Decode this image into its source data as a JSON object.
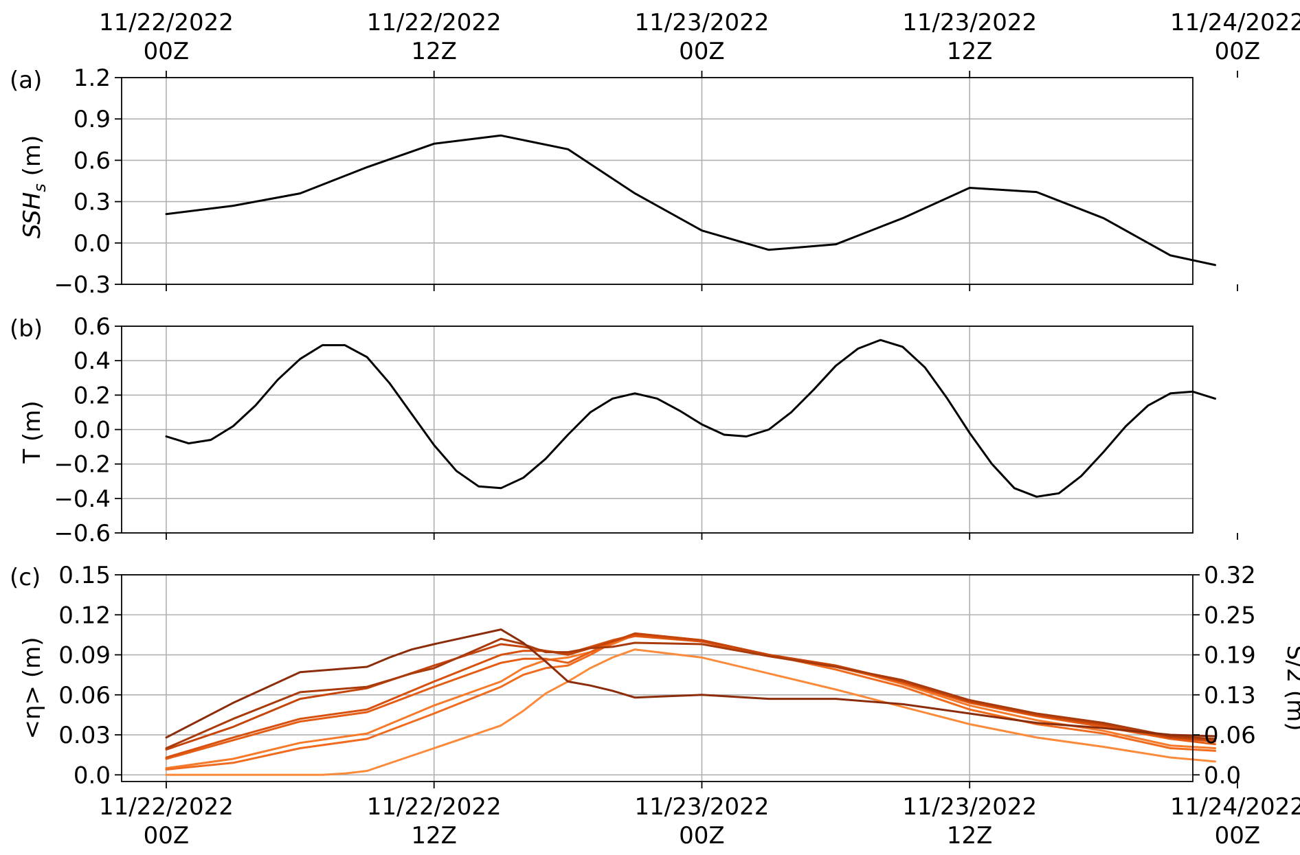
{
  "chart_data": [
    {
      "type": "line",
      "panel_label": "(a)",
      "ylabel": "SSH",
      "ylabel_subscript": "s",
      "ylabel_unit": "(m)",
      "ylim": [
        -0.3,
        1.2
      ],
      "yticks": [
        -0.3,
        0.0,
        0.3,
        0.6,
        0.9,
        1.2
      ],
      "ytick_labels": [
        "−0.3",
        "0.0",
        "0.3",
        "0.6",
        "0.9",
        "1.2"
      ],
      "xlim": [
        -2,
        46
      ],
      "xticks": [
        0,
        12,
        24,
        36,
        48
      ],
      "xtick_labels_top": [
        [
          "11/22/2022",
          "00Z"
        ],
        [
          "11/22/2022",
          "12Z"
        ],
        [
          "11/23/2022",
          "00Z"
        ],
        [
          "11/23/2022",
          "12Z"
        ],
        [
          "11/24/2022",
          "00Z"
        ]
      ],
      "grid": true,
      "series": [
        {
          "color": "#000000",
          "x": [
            0,
            3,
            6,
            9,
            12,
            15,
            18,
            21,
            24,
            27,
            30,
            33,
            36,
            39,
            42,
            45,
            47
          ],
          "y": [
            0.21,
            0.27,
            0.36,
            0.55,
            0.72,
            0.78,
            0.68,
            0.36,
            0.09,
            -0.05,
            -0.01,
            0.18,
            0.4,
            0.37,
            0.18,
            -0.09,
            -0.16
          ]
        }
      ]
    },
    {
      "type": "line",
      "panel_label": "(b)",
      "ylabel": "T (m)",
      "ylim": [
        -0.6,
        0.6
      ],
      "yticks": [
        -0.6,
        -0.4,
        -0.2,
        0.0,
        0.2,
        0.4,
        0.6
      ],
      "ytick_labels": [
        "−0.6",
        "−0.4",
        "−0.2",
        "0.0",
        "0.2",
        "0.4",
        "0.6"
      ],
      "xlim": [
        -2,
        46
      ],
      "xticks": [
        0,
        12,
        24,
        36,
        48
      ],
      "grid": true,
      "series": [
        {
          "color": "#000000",
          "x": [
            0,
            1,
            2,
            3,
            4,
            5,
            6,
            7,
            8,
            9,
            10,
            11,
            12,
            13,
            14,
            15,
            16,
            17,
            18,
            19,
            20,
            21,
            22,
            23,
            24,
            25,
            26,
            27,
            28,
            29,
            30,
            31,
            32,
            33,
            34,
            35,
            36,
            37,
            38,
            39,
            40,
            41,
            42,
            43,
            44,
            45,
            46,
            47
          ],
          "y": [
            -0.04,
            -0.08,
            -0.06,
            0.02,
            0.14,
            0.29,
            0.41,
            0.49,
            0.49,
            0.42,
            0.27,
            0.09,
            -0.09,
            -0.24,
            -0.33,
            -0.34,
            -0.28,
            -0.17,
            -0.03,
            0.1,
            0.18,
            0.21,
            0.18,
            0.11,
            0.03,
            -0.03,
            -0.04,
            0.0,
            0.1,
            0.23,
            0.37,
            0.47,
            0.52,
            0.48,
            0.36,
            0.18,
            -0.02,
            -0.2,
            -0.34,
            -0.39,
            -0.37,
            -0.27,
            -0.13,
            0.02,
            0.14,
            0.21,
            0.22,
            0.18
          ]
        }
      ]
    },
    {
      "type": "line",
      "panel_label": "(c)",
      "ylabel": "<η> (m)",
      "ylabel_right": "S/2 (m)",
      "ylim": [
        -0.005,
        0.15
      ],
      "yticks": [
        0.0,
        0.03,
        0.06,
        0.09,
        0.12,
        0.15
      ],
      "ytick_labels": [
        "0.0",
        "0.03",
        "0.06",
        "0.09",
        "0.12",
        "0.15"
      ],
      "yticks_right_at": [
        0.0,
        0.03,
        0.06,
        0.09,
        0.12,
        0.15
      ],
      "ytick_labels_right": [
        "0.0",
        "0.06",
        "0.13",
        "0.19",
        "0.25",
        "0.32"
      ],
      "xlim": [
        -2,
        46
      ],
      "xticks": [
        0,
        12,
        24,
        36,
        48
      ],
      "xtick_labels_bottom": [
        [
          "11/22/2022",
          "00Z"
        ],
        [
          "11/22/2022",
          "12Z"
        ],
        [
          "11/23/2022",
          "00Z"
        ],
        [
          "11/23/2022",
          "12Z"
        ],
        [
          "11/24/2022",
          "00Z"
        ]
      ],
      "grid": true,
      "series": [
        {
          "color": "#fb8a3a",
          "x": [
            0,
            3,
            6,
            7,
            8,
            9,
            12,
            15,
            16,
            17,
            18,
            19,
            20,
            21,
            24,
            27,
            30,
            33,
            36,
            39,
            42,
            45,
            47
          ],
          "y": [
            0.0,
            0.0,
            0.0,
            0.0,
            0.001,
            0.003,
            0.02,
            0.037,
            0.048,
            0.061,
            0.07,
            0.08,
            0.088,
            0.094,
            0.088,
            0.076,
            0.064,
            0.051,
            0.038,
            0.028,
            0.021,
            0.013,
            0.01
          ]
        },
        {
          "color": "#f67a2a",
          "x": [
            0,
            3,
            6,
            9,
            12,
            15,
            16,
            17,
            18,
            19,
            20,
            21,
            24,
            27,
            30,
            33,
            36,
            39,
            42,
            45,
            47
          ],
          "y": [
            0.005,
            0.012,
            0.024,
            0.031,
            0.052,
            0.07,
            0.08,
            0.086,
            0.088,
            0.092,
            0.098,
            0.105,
            0.1,
            0.09,
            0.082,
            0.068,
            0.052,
            0.041,
            0.033,
            0.022,
            0.02
          ]
        },
        {
          "color": "#f06b1e",
          "x": [
            0,
            3,
            6,
            9,
            12,
            15,
            16,
            17,
            18,
            19,
            20,
            21,
            24,
            27,
            30,
            33,
            36,
            39,
            42,
            45,
            47
          ],
          "y": [
            0.004,
            0.009,
            0.02,
            0.027,
            0.046,
            0.066,
            0.075,
            0.08,
            0.082,
            0.09,
            0.099,
            0.106,
            0.101,
            0.09,
            0.079,
            0.066,
            0.049,
            0.038,
            0.031,
            0.02,
            0.018
          ]
        },
        {
          "color": "#e55c14",
          "x": [
            0,
            3,
            6,
            9,
            12,
            15,
            16,
            17,
            18,
            19,
            20,
            21,
            24,
            27,
            30,
            33,
            36,
            39,
            42,
            45,
            47
          ],
          "y": [
            0.012,
            0.026,
            0.04,
            0.047,
            0.066,
            0.084,
            0.087,
            0.087,
            0.084,
            0.092,
            0.1,
            0.104,
            0.1,
            0.089,
            0.081,
            0.069,
            0.054,
            0.044,
            0.036,
            0.027,
            0.023
          ]
        },
        {
          "color": "#d8500e",
          "x": [
            0,
            3,
            6,
            9,
            12,
            15,
            16,
            17,
            18,
            19,
            20,
            21,
            24,
            27,
            30,
            33,
            36,
            39,
            42,
            45,
            47
          ],
          "y": [
            0.013,
            0.028,
            0.042,
            0.049,
            0.07,
            0.09,
            0.093,
            0.093,
            0.091,
            0.096,
            0.101,
            0.105,
            0.1,
            0.09,
            0.082,
            0.07,
            0.055,
            0.045,
            0.037,
            0.028,
            0.025
          ]
        },
        {
          "color": "#c4440a",
          "x": [
            0,
            3,
            6,
            9,
            12,
            15,
            16,
            17,
            18,
            19,
            20,
            21,
            24,
            27,
            30,
            33,
            36,
            39,
            42,
            45,
            47
          ],
          "y": [
            0.019,
            0.036,
            0.057,
            0.065,
            0.082,
            0.098,
            0.096,
            0.093,
            0.09,
            0.095,
            0.1,
            0.106,
            0.101,
            0.09,
            0.082,
            0.07,
            0.055,
            0.045,
            0.038,
            0.028,
            0.026
          ]
        },
        {
          "color": "#a93a0b",
          "x": [
            0,
            3,
            6,
            9,
            10,
            11,
            12,
            15,
            16,
            17,
            18,
            19,
            20,
            21,
            24,
            27,
            30,
            33,
            36,
            39,
            42,
            45,
            47
          ],
          "y": [
            0.02,
            0.042,
            0.062,
            0.066,
            0.071,
            0.076,
            0.08,
            0.102,
            0.098,
            0.092,
            0.092,
            0.095,
            0.096,
            0.099,
            0.098,
            0.089,
            0.081,
            0.071,
            0.056,
            0.046,
            0.039,
            0.029,
            0.027
          ]
        },
        {
          "color": "#8b2c0a",
          "x": [
            0,
            3,
            6,
            9,
            10,
            11,
            12,
            15,
            16,
            17,
            18,
            19,
            20,
            21,
            24,
            27,
            30,
            33,
            36,
            39,
            42,
            45,
            47
          ],
          "y": [
            0.028,
            0.054,
            0.077,
            0.081,
            0.088,
            0.094,
            0.098,
            0.109,
            0.099,
            0.085,
            0.07,
            0.067,
            0.063,
            0.058,
            0.06,
            0.057,
            0.057,
            0.053,
            0.046,
            0.039,
            0.035,
            0.03,
            0.029
          ]
        }
      ]
    }
  ]
}
